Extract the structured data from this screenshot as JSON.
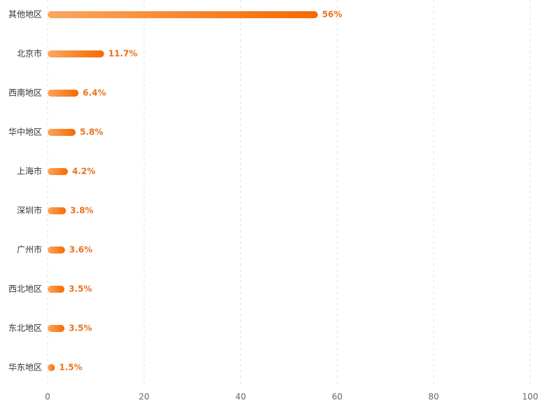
{
  "chart_data": {
    "type": "bar",
    "orientation": "horizontal",
    "categories": [
      "其他地区",
      "北京市",
      "西南地区",
      "华中地区",
      "上海市",
      "深圳市",
      "广州市",
      "西北地区",
      "东北地区",
      "华东地区"
    ],
    "values": [
      56,
      11.7,
      6.4,
      5.8,
      4.2,
      3.8,
      3.6,
      3.5,
      3.5,
      1.5
    ],
    "value_labels": [
      "56%",
      "11.7%",
      "6.4%",
      "5.8%",
      "4.2%",
      "3.8%",
      "3.6%",
      "3.5%",
      "3.5%",
      "1.5%"
    ],
    "color": "#f56a00",
    "xlim": [
      0,
      100
    ],
    "xticks": [
      0,
      20,
      40,
      60,
      80,
      100
    ],
    "grid": true
  }
}
